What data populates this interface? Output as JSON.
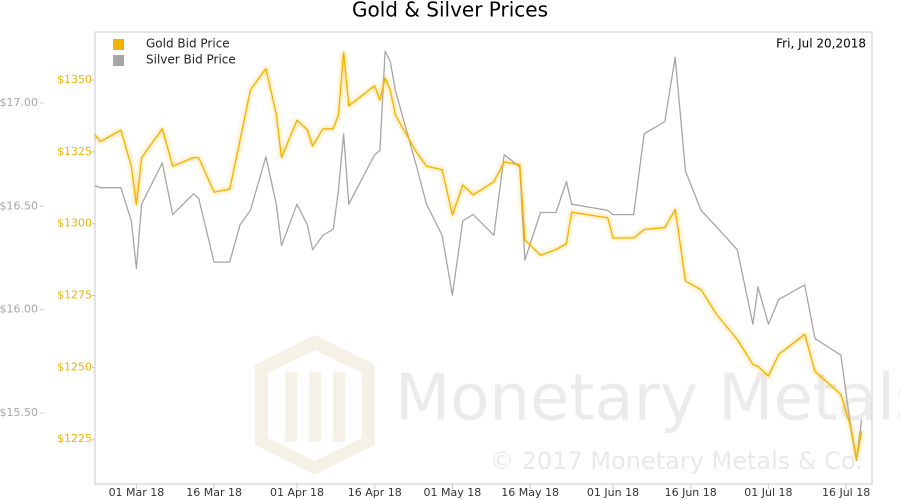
{
  "chart_data": {
    "type": "line",
    "title": "Gold & Silver Prices",
    "date_label": "Fri, Jul 20,2018",
    "watermark": "Monetary Metals",
    "copyright": "© 2017 Monetary Metals & Co.",
    "legend": "top-left",
    "x": [
      "2018-02-21",
      "2018-02-22",
      "2018-02-26",
      "2018-02-28",
      "2018-03-01",
      "2018-03-02",
      "2018-03-06",
      "2018-03-08",
      "2018-03-12",
      "2018-03-13",
      "2018-03-16",
      "2018-03-19",
      "2018-03-21",
      "2018-03-23",
      "2018-03-26",
      "2018-03-28",
      "2018-03-29",
      "2018-04-01",
      "2018-04-03",
      "2018-04-04",
      "2018-04-06",
      "2018-04-08",
      "2018-04-09",
      "2018-04-10",
      "2018-04-11",
      "2018-04-16",
      "2018-04-17",
      "2018-04-18",
      "2018-04-19",
      "2018-04-20",
      "2018-04-24",
      "2018-04-26",
      "2018-04-29",
      "2018-05-01",
      "2018-05-03",
      "2018-05-05",
      "2018-05-09",
      "2018-05-11",
      "2018-05-14",
      "2018-05-15",
      "2018-05-18",
      "2018-05-21",
      "2018-05-23",
      "2018-05-24",
      "2018-05-31",
      "2018-06-01",
      "2018-06-05",
      "2018-06-07",
      "2018-06-11",
      "2018-06-13",
      "2018-06-15",
      "2018-06-18",
      "2018-06-21",
      "2018-06-25",
      "2018-06-28",
      "2018-06-29",
      "2018-07-01",
      "2018-07-03",
      "2018-07-08",
      "2018-07-10",
      "2018-07-15",
      "2018-07-17",
      "2018-07-18",
      "2018-07-19"
    ],
    "series": [
      {
        "name": "Gold Bid Price",
        "color": "#f0b400",
        "axis": "y",
        "values": [
          1331,
          1328.5,
          1332.6,
          1320,
          1306.6,
          1323,
          1333,
          1320,
          1323,
          1323,
          1311,
          1312,
          1329,
          1346.5,
          1354,
          1338,
          1323,
          1336,
          1332.6,
          1327,
          1333,
          1333,
          1338,
          1359.7,
          1341,
          1348,
          1343,
          1350.7,
          1346.5,
          1337.8,
          1325,
          1320,
          1318.8,
          1303,
          1313.5,
          1310,
          1314.6,
          1321.5,
          1320.5,
          1294.4,
          1289,
          1291,
          1293,
          1304,
          1302,
          1295,
          1295,
          1298,
          1298.6,
          1305,
          1280,
          1277,
          1268.4,
          1259.7,
          1251,
          1250.3,
          1247,
          1254.5,
          1261.5,
          1248.6,
          1240.6,
          1228.5,
          1218,
          1227.8
        ]
      },
      {
        "name": "Silver Bid Price",
        "color": "#a6a6a6",
        "axis": "y2",
        "values": [
          16.6,
          16.59,
          16.59,
          16.43,
          16.2,
          16.51,
          16.71,
          16.46,
          16.56,
          16.54,
          16.23,
          16.23,
          16.41,
          16.48,
          16.74,
          16.51,
          16.31,
          16.51,
          16.41,
          16.29,
          16.36,
          16.39,
          16.58,
          16.85,
          16.51,
          16.75,
          16.77,
          17.25,
          17.2,
          17.06,
          16.7,
          16.51,
          16.36,
          16.07,
          16.43,
          16.46,
          16.36,
          16.75,
          16.69,
          16.24,
          16.47,
          16.47,
          16.62,
          16.51,
          16.48,
          16.46,
          16.46,
          16.85,
          16.91,
          17.22,
          16.67,
          16.48,
          16.4,
          16.29,
          15.93,
          16.11,
          15.93,
          16.05,
          16.12,
          15.86,
          15.78,
          15.41,
          15.27,
          15.47
        ]
      }
    ],
    "xlim": [
      "2018-02-21",
      "2018-07-21"
    ],
    "xticks": [
      {
        "value": "2018-03-01",
        "label": "01 Mar 18"
      },
      {
        "value": "2018-03-16",
        "label": "16 Mar 18"
      },
      {
        "value": "2018-04-01",
        "label": "01 Apr 18"
      },
      {
        "value": "2018-04-16",
        "label": "16 Apr 18"
      },
      {
        "value": "2018-05-01",
        "label": "01 May 18"
      },
      {
        "value": "2018-05-16",
        "label": "16 May 18"
      },
      {
        "value": "2018-06-01",
        "label": "01 Jun 18"
      },
      {
        "value": "2018-06-16",
        "label": "16 Jun 18"
      },
      {
        "value": "2018-07-01",
        "label": "01 Jul 18"
      },
      {
        "value": "2018-07-16",
        "label": "16 Jul 18"
      }
    ],
    "ylim": [
      1209.4,
      1366.7
    ],
    "yticks": [
      {
        "value": 1225,
        "label": "$1225"
      },
      {
        "value": 1250,
        "label": "$1250"
      },
      {
        "value": 1275,
        "label": "$1275"
      },
      {
        "value": 1300,
        "label": "$1300"
      },
      {
        "value": 1325,
        "label": "$1325"
      },
      {
        "value": 1350,
        "label": "$1350"
      }
    ],
    "y2lim": [
      15.157,
      17.343
    ],
    "y2ticks": [
      {
        "value": 15.5,
        "label": "$15.50"
      },
      {
        "value": 16,
        "label": "$16.00"
      },
      {
        "value": 16.5,
        "label": "$16.50"
      },
      {
        "value": 17,
        "label": "$17.00"
      }
    ]
  }
}
